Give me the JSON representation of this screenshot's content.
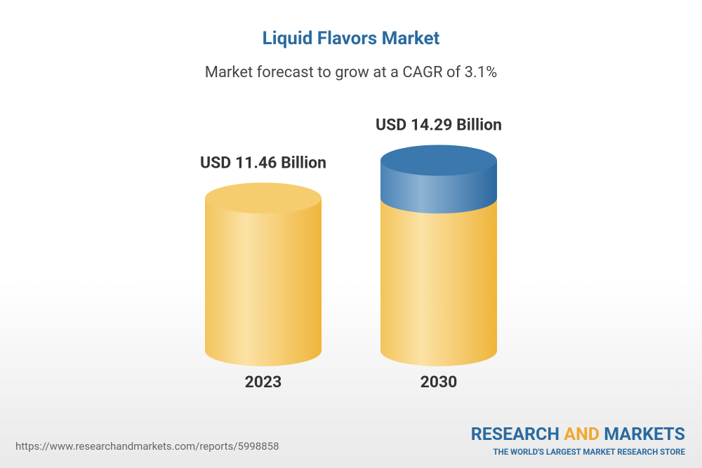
{
  "chart_data": {
    "type": "cylinder",
    "title": "Liquid Flavors Market",
    "subtitle": "Market forecast to grow at a CAGR of 3.1%",
    "categories": [
      "2023",
      "2030"
    ],
    "values": [
      11.46,
      14.29
    ],
    "value_labels": [
      "USD 11.46 Billion",
      "USD 14.29 Billion"
    ],
    "color": "#f2bf4a",
    "growth_color": "#3774a9"
  },
  "footer": {
    "url": "https://www.researchandmarkets.com/reports/5998858",
    "logo": {
      "word1": "RESEARCH",
      "word2": "AND",
      "word3": "MARKETS",
      "tagline": "THE WORLD'S LARGEST MARKET RESEARCH STORE"
    }
  }
}
